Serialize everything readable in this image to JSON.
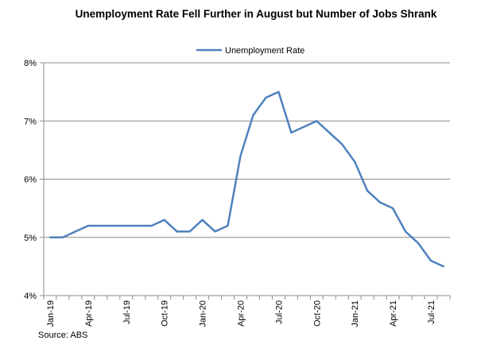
{
  "chart_data": {
    "type": "line",
    "title": "Unemployment Rate Fell Further in August but Number of Jobs Shrank",
    "xlabel": "",
    "ylabel": "",
    "ylim": [
      4,
      8
    ],
    "y_ticks": [
      "4%",
      "5%",
      "6%",
      "7%",
      "8%"
    ],
    "grid": "horizontal",
    "legend_position": "top",
    "source": "Source: ABS",
    "x": [
      "Jan-19",
      "Feb-19",
      "Mar-19",
      "Apr-19",
      "May-19",
      "Jun-19",
      "Jul-19",
      "Aug-19",
      "Sep-19",
      "Oct-19",
      "Nov-19",
      "Dec-19",
      "Jan-20",
      "Feb-20",
      "Mar-20",
      "Apr-20",
      "May-20",
      "Jun-20",
      "Jul-20",
      "Aug-20",
      "Sep-20",
      "Oct-20",
      "Nov-20",
      "Dec-20",
      "Jan-21",
      "Feb-21",
      "Mar-21",
      "Apr-21",
      "May-21",
      "Jun-21",
      "Jul-21",
      "Aug-21"
    ],
    "x_tick_labels": [
      "Jan-19",
      "Apr-19",
      "Jul-19",
      "Oct-19",
      "Jan-20",
      "Apr-20",
      "Jul-20",
      "Oct-20",
      "Jan-21",
      "Apr-21",
      "Jul-21"
    ],
    "series": [
      {
        "name": "Unemployment Rate",
        "color": "#4f81bd",
        "values": [
          5.0,
          5.0,
          5.1,
          5.2,
          5.2,
          5.2,
          5.2,
          5.2,
          5.2,
          5.3,
          5.1,
          5.1,
          5.3,
          5.1,
          5.2,
          6.4,
          7.1,
          7.4,
          7.5,
          6.8,
          6.9,
          7.0,
          6.8,
          6.6,
          6.3,
          5.8,
          5.6,
          5.5,
          5.1,
          4.9,
          4.6,
          4.5
        ]
      }
    ]
  }
}
